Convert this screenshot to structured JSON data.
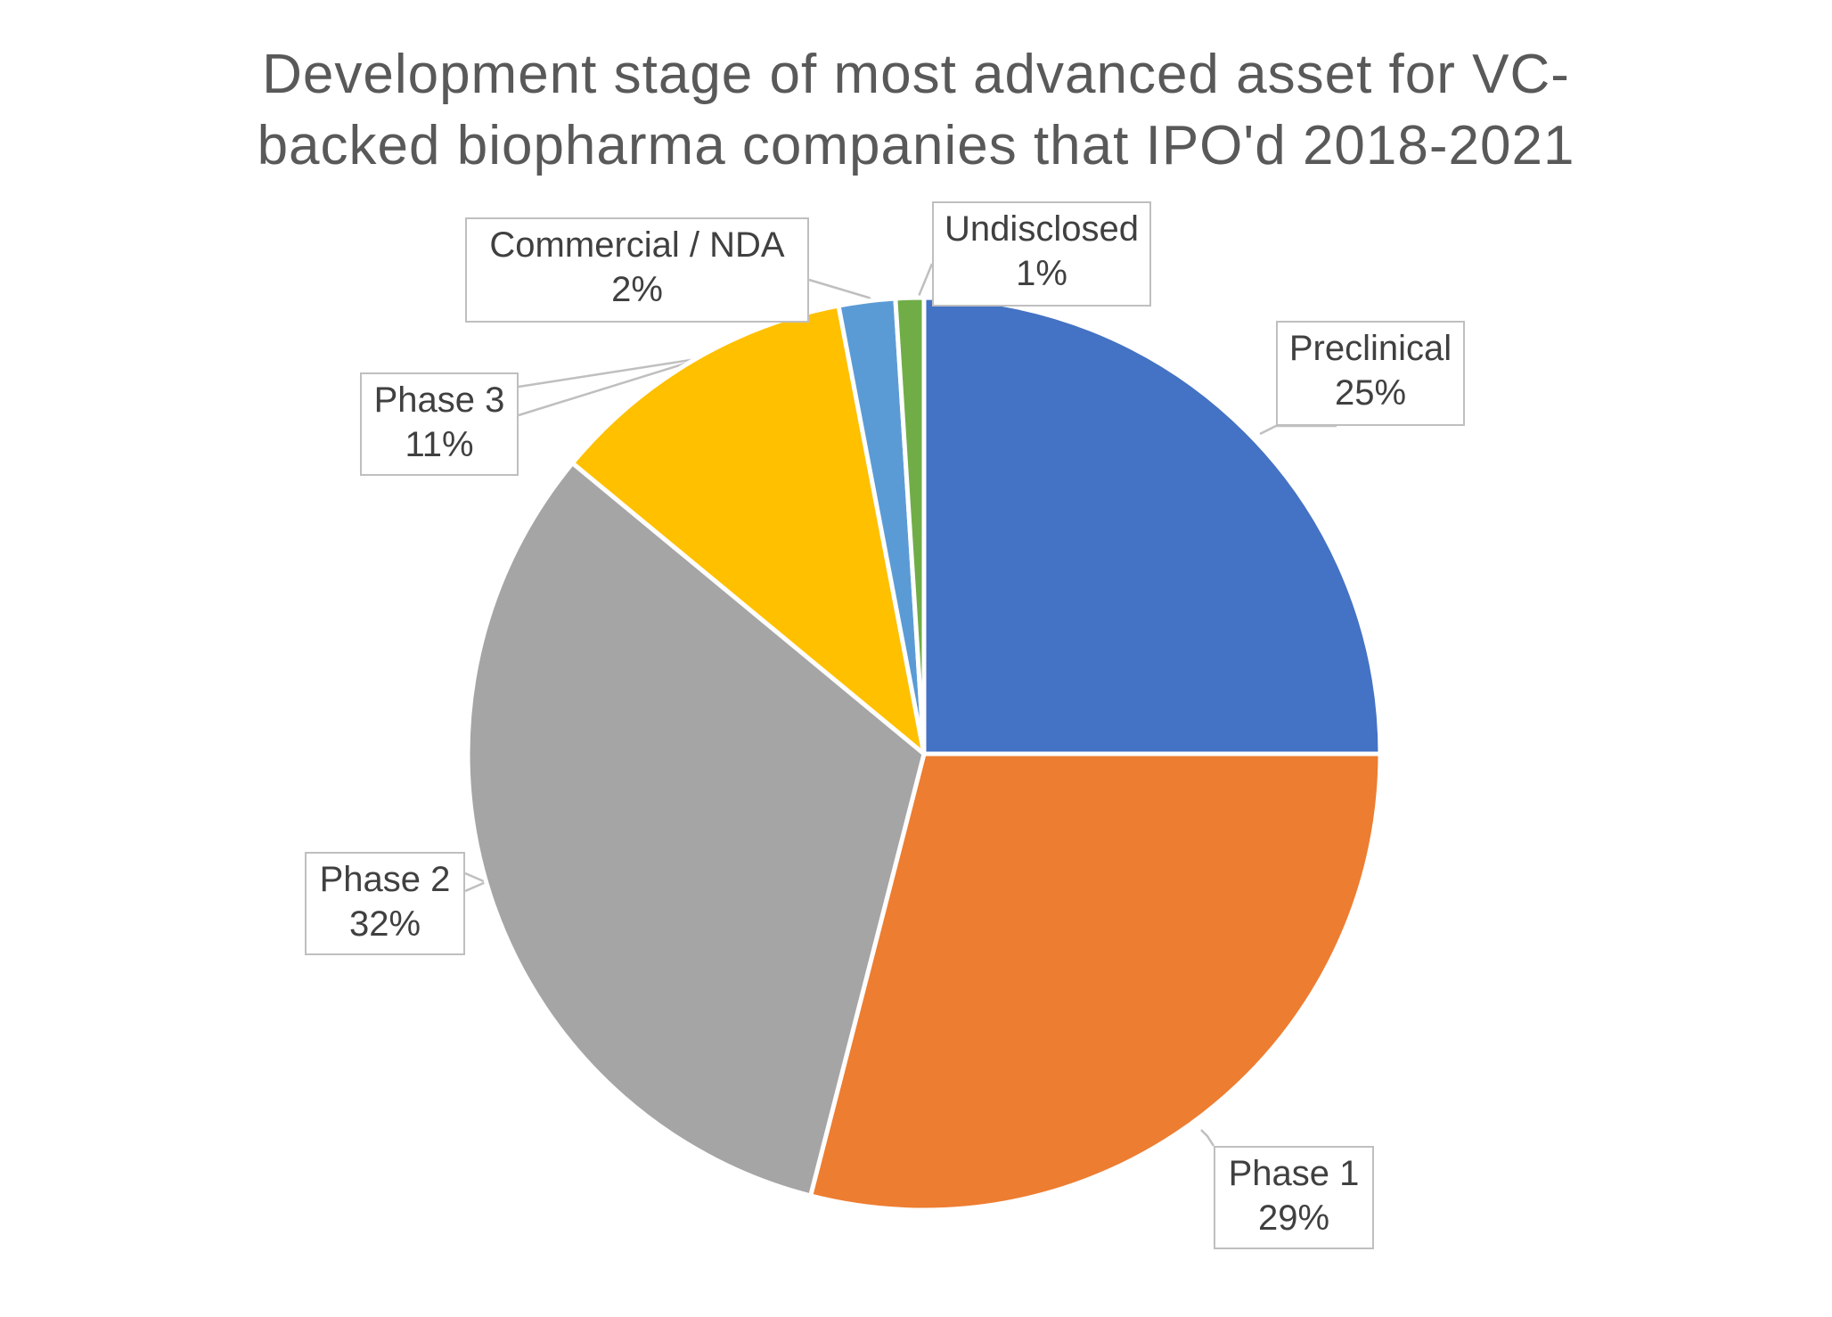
{
  "chart_data": {
    "type": "pie",
    "title": "Development stage of most advanced asset for VC-backed biopharma companies that IPO'd 2018-2021",
    "title_lines": [
      "Development stage of most advanced asset for VC-",
      "backed biopharma companies that IPO'd 2018-2021"
    ],
    "start_angle_deg": 0,
    "direction": "clockwise",
    "slices": [
      {
        "name": "Preclinical",
        "value": 25,
        "label": "25%",
        "color": "#4472C4"
      },
      {
        "name": "Phase 1",
        "value": 29,
        "label": "29%",
        "color": "#ED7D31"
      },
      {
        "name": "Phase 2",
        "value": 32,
        "label": "32%",
        "color": "#A5A5A5"
      },
      {
        "name": "Phase 3",
        "value": 11,
        "label": "11%",
        "color": "#FFC000"
      },
      {
        "name": "Commercial / NDA",
        "value": 2,
        "label": "2%",
        "color": "#5B9BD5"
      },
      {
        "name": "Undisclosed",
        "value": 1,
        "label": "1%",
        "color": "#70AD47"
      }
    ],
    "legend": "none",
    "data_labels": "callouts"
  }
}
